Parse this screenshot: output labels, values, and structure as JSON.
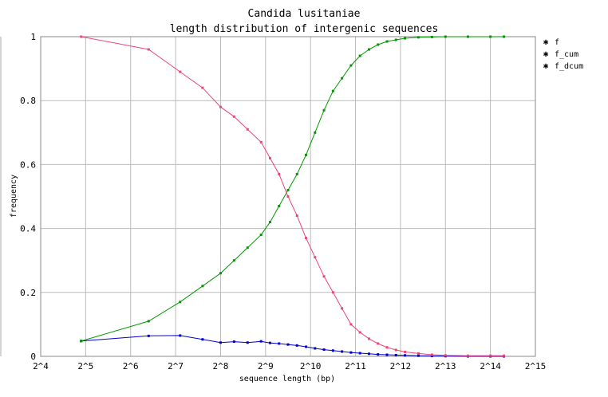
{
  "chart_data": {
    "type": "line",
    "title": "Candida lusitaniae",
    "subtitle": "length distribution of intergenic sequences",
    "xlabel": "sequence length (bp)",
    "ylabel": "frequency",
    "x_scale": "log2",
    "xlim_log2": [
      4,
      15
    ],
    "ylim": [
      0,
      1
    ],
    "x_ticks": [
      "2^4",
      "2^5",
      "2^6",
      "2^7",
      "2^8",
      "2^9",
      "2^10",
      "2^11",
      "2^12",
      "2^13",
      "2^14",
      "2^15"
    ],
    "y_ticks": [
      "0",
      "0.2",
      "0.4",
      "0.6",
      "0.8",
      "1"
    ],
    "grid": true,
    "legend_position": "right",
    "series": [
      {
        "name": "f",
        "color": "#0000cc",
        "x_log2": [
          4.9,
          6.4,
          7.1,
          7.6,
          8.0,
          8.3,
          8.6,
          8.9,
          9.1,
          9.3,
          9.5,
          9.7,
          9.9,
          10.1,
          10.3,
          10.5,
          10.7,
          10.9,
          11.1,
          11.3,
          11.5,
          11.7,
          11.9,
          12.1,
          12.4,
          12.7,
          13.0,
          13.5,
          14.0,
          14.3
        ],
        "values": [
          0.048,
          0.064,
          0.065,
          0.053,
          0.043,
          0.046,
          0.043,
          0.047,
          0.042,
          0.04,
          0.037,
          0.034,
          0.03,
          0.025,
          0.021,
          0.018,
          0.015,
          0.012,
          0.01,
          0.008,
          0.006,
          0.005,
          0.004,
          0.003,
          0.002,
          0.001,
          0.0005,
          0.0,
          0.0,
          0.0
        ]
      },
      {
        "name": "f_cum",
        "color": "#009900",
        "x_log2": [
          4.9,
          6.4,
          7.1,
          7.6,
          8.0,
          8.3,
          8.6,
          8.9,
          9.1,
          9.3,
          9.5,
          9.7,
          9.9,
          10.1,
          10.3,
          10.5,
          10.7,
          10.9,
          11.1,
          11.3,
          11.5,
          11.7,
          11.9,
          12.1,
          12.4,
          12.7,
          13.0,
          13.5,
          14.0,
          14.3
        ],
        "values": [
          0.048,
          0.11,
          0.17,
          0.22,
          0.26,
          0.3,
          0.34,
          0.38,
          0.42,
          0.47,
          0.52,
          0.57,
          0.63,
          0.7,
          0.77,
          0.83,
          0.87,
          0.91,
          0.94,
          0.96,
          0.975,
          0.985,
          0.99,
          0.995,
          0.998,
          0.999,
          1.0,
          1.0,
          1.0,
          1.0
        ]
      },
      {
        "name": "f_dcum",
        "color": "#ee4477",
        "x_log2": [
          4.9,
          6.4,
          7.1,
          7.6,
          8.0,
          8.3,
          8.6,
          8.9,
          9.1,
          9.3,
          9.5,
          9.7,
          9.9,
          10.1,
          10.3,
          10.5,
          10.7,
          10.9,
          11.1,
          11.3,
          11.5,
          11.7,
          11.9,
          12.1,
          12.4,
          12.7,
          13.0,
          13.5,
          14.0,
          14.3
        ],
        "values": [
          1.0,
          0.96,
          0.89,
          0.84,
          0.78,
          0.75,
          0.71,
          0.67,
          0.62,
          0.57,
          0.5,
          0.44,
          0.37,
          0.31,
          0.25,
          0.2,
          0.15,
          0.1,
          0.075,
          0.055,
          0.04,
          0.028,
          0.02,
          0.014,
          0.009,
          0.005,
          0.003,
          0.002,
          0.002,
          0.002
        ]
      }
    ]
  }
}
